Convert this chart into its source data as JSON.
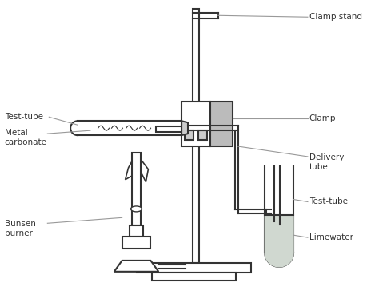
{
  "title": "",
  "bg_color": "#ffffff",
  "line_color": "#333333",
  "gray_color": "#999999",
  "light_gray": "#cccccc",
  "fill_gray": "#bbbbbb",
  "limewater_fill": "#d0d8d0",
  "labels": {
    "clamp_stand": "Clamp stand",
    "clamp": "Clamp",
    "delivery_tube": "Delivery\ntube",
    "test_tube_left": "Test-tube",
    "metal_carbonate": "Metal\ncarbonate",
    "bunsen_burner": "Bunsen\nburner",
    "test_tube_right": "Test-tube",
    "limewater": "Limewater"
  },
  "figsize": [
    4.74,
    3.69
  ],
  "dpi": 100
}
